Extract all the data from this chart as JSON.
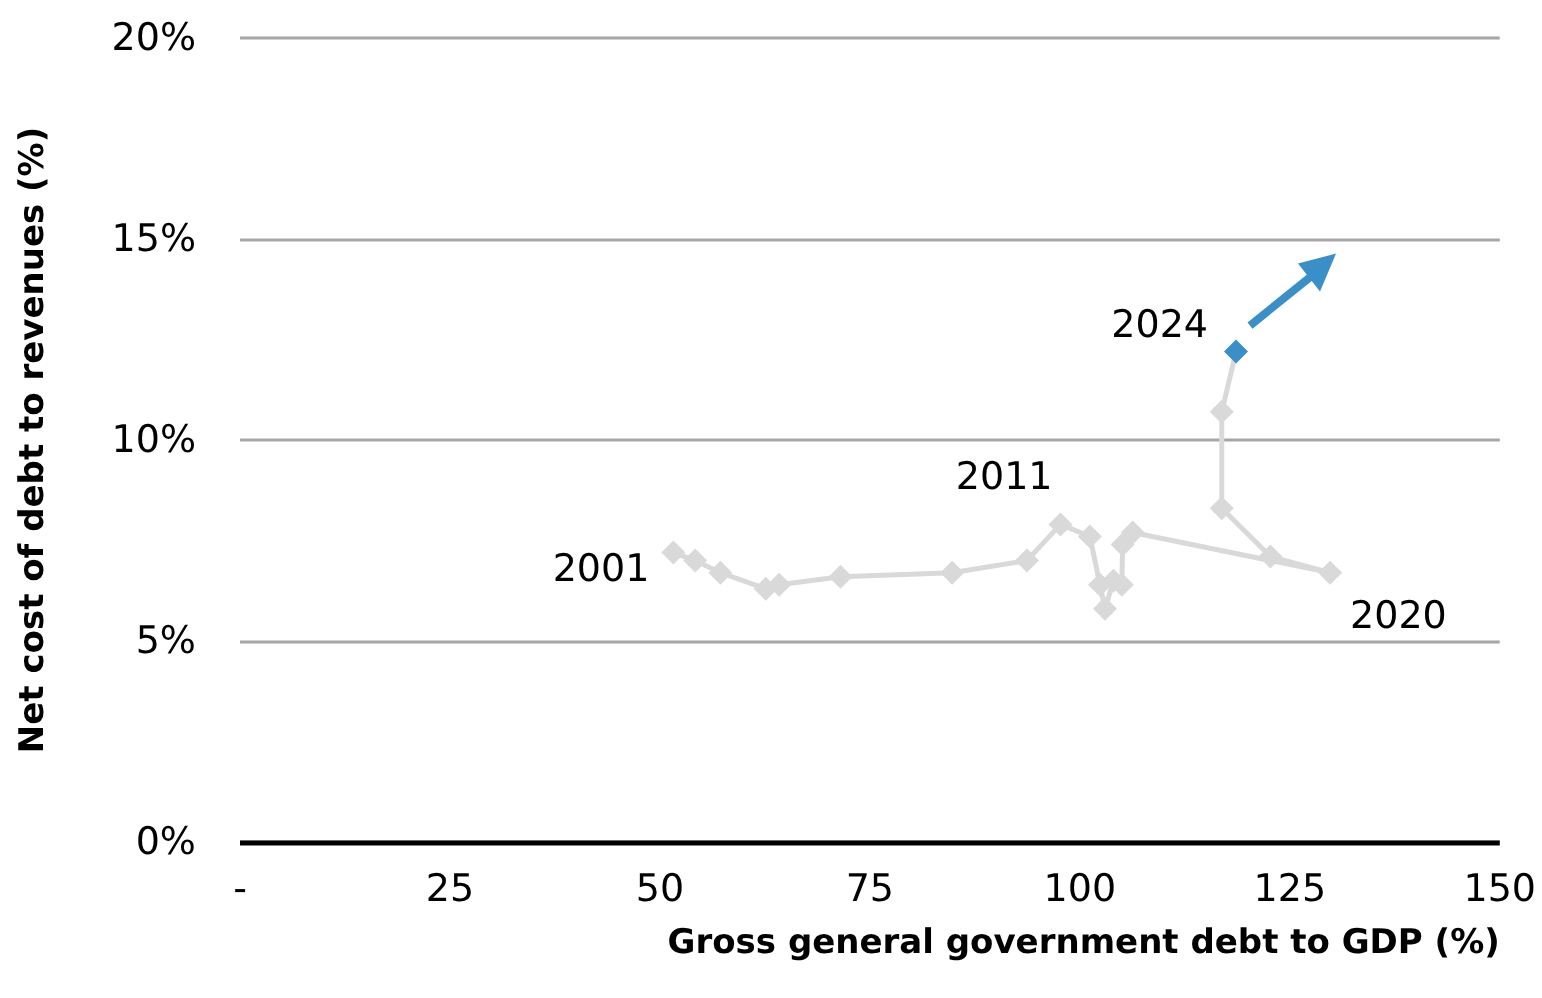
{
  "chart_data": {
    "type": "line",
    "xlabel": "Gross general government debt to GDP (%)",
    "ylabel": "Net cost of debt to revenues (%)",
    "xlim": [
      0,
      150
    ],
    "xticks": [
      {
        "value": 0,
        "label": "-"
      },
      25,
      50,
      75,
      100,
      125,
      150
    ],
    "ylim": [
      0,
      20
    ],
    "yticks": [
      {
        "value": 0,
        "label": "0%"
      },
      {
        "value": 5,
        "label": "5%"
      },
      {
        "value": 10,
        "label": "10%"
      },
      {
        "value": 15,
        "label": "15%"
      },
      {
        "value": 20,
        "label": "20%"
      }
    ],
    "grid": "y",
    "marker": "diamond",
    "line_style": "solid",
    "series": [
      {
        "color": "#d9d9d9",
        "x": [
          51.6,
          54.2,
          57.2,
          62.6,
          64.2,
          71.5,
          84.8,
          93.7,
          97.7,
          101.2,
          102.4,
          103.0,
          104.0,
          105.0,
          105.1,
          106.3,
          129.8,
          122.7,
          116.9,
          116.9,
          118.6
        ],
        "values": [
          7.2,
          7.0,
          6.7,
          6.3,
          6.4,
          6.6,
          6.7,
          7.0,
          7.9,
          7.6,
          6.4,
          5.8,
          6.5,
          6.4,
          7.4,
          7.7,
          6.7,
          7.1,
          8.3,
          10.7,
          12.2
        ],
        "colors": [
          "#d9d9d9",
          "#d9d9d9",
          "#d9d9d9",
          "#d9d9d9",
          "#d9d9d9",
          "#d9d9d9",
          "#d9d9d9",
          "#d9d9d9",
          "#d9d9d9",
          "#d9d9d9",
          "#d9d9d9",
          "#d9d9d9",
          "#d9d9d9",
          "#d9d9d9",
          "#d9d9d9",
          "#d9d9d9",
          "#d9d9d9",
          "#d9d9d9",
          "#d9d9d9",
          "#d9d9d9",
          "#3a8fc9"
        ]
      }
    ],
    "annotations": [
      {
        "text": "2001",
        "x": 51.6,
        "y": 7.2
      },
      {
        "text": "2011",
        "x": 97.7,
        "y": 7.9
      },
      {
        "text": "2020",
        "x": 129.8,
        "y": 6.7
      },
      {
        "text": "2024",
        "x": 118.6,
        "y": 12.2
      }
    ]
  }
}
